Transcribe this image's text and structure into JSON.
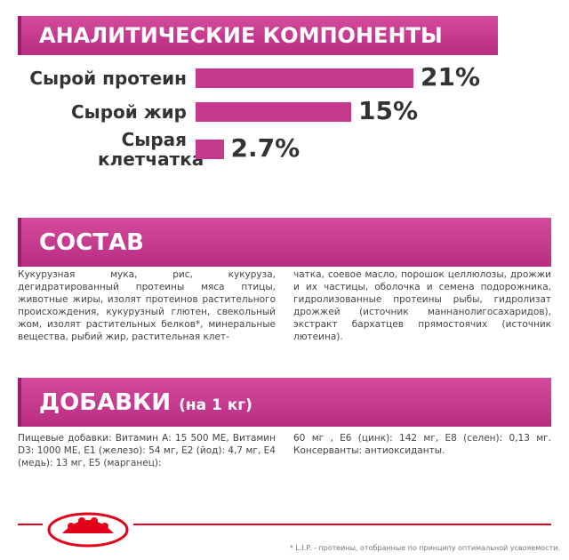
{
  "chart_data": {
    "type": "bar",
    "orientation": "horizontal",
    "title": "АНАЛИТИЧЕСКИЕ КОМПОНЕНТЫ",
    "categories": [
      "Сырой протеин",
      "Сырой жир",
      "Сырая клетчатка"
    ],
    "values": [
      21,
      15,
      2.7
    ],
    "value_labels": [
      "21%",
      "15%",
      "2.7%"
    ],
    "color": "#c6398f"
  },
  "composition": {
    "title": "СОСТАВ",
    "text": [
      "Кукурузная мука, рис, кукуруза, дегидратированный протеины мяса птицы, животные жиры, изолят протеинов растительного происхождения, кукурузный глютен, свекольный жом, изолят растительных белков*, минеральные вещества, рыбий жир, растительная клет-",
      "чатка, соевое масло, порошок целлюлозы, дрожжи и их частицы, оболочка и семена подорожника, гидролизованные протеины рыбы, гидролизат дрожжей (источник маннанолигосахаридов), экстракт бархатцев прямостоячих (источник лютеина)."
    ]
  },
  "additives": {
    "title": "ДОБАВКИ",
    "subtitle": "(на 1 кг)",
    "text": [
      "Пищевые добавки: Витамин А: 15 500 МЕ, Витамин D3: 1000 МЕ, Е1 (железо): 54 мг, Е2 (йод): 4,7 мг, Е4 (медь): 13 мг, Е5 (марганец):",
      "60 мг , Е6 (цинк): 142 мг, Е8 (селен): 0,13 мг. Консерванты: антиоксиданты."
    ]
  },
  "footnote": "* L.I.P. - протеины, отобранные по принципу оптимальной усвояемости."
}
